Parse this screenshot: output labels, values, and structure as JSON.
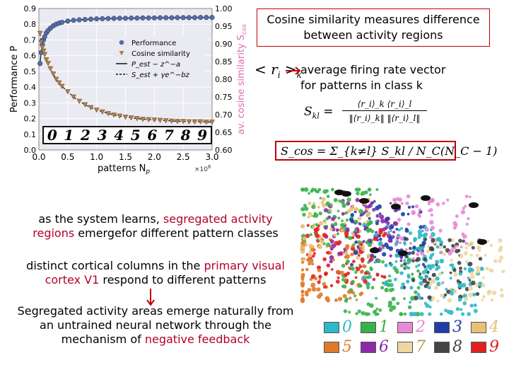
{
  "chart_data": {
    "type": "line",
    "xlabel": "patterns N",
    "xlabel_sub": "p",
    "x_multiplier": "×10",
    "x_multiplier_exp": "6",
    "ylabel_left": "Performance P",
    "ylabel_right": "av. cosine similarity S",
    "ylabel_right_sub": "cos",
    "xlim": [
      0.0,
      3.0
    ],
    "ylim_left": [
      0.0,
      0.9
    ],
    "ylim_right": [
      0.6,
      1.0
    ],
    "x_ticks": [
      "0.0",
      "0.5",
      "1.0",
      "1.5",
      "2.0",
      "2.5",
      "3.0"
    ],
    "y_ticks_left": [
      "0.0",
      "0.1",
      "0.2",
      "0.3",
      "0.4",
      "0.5",
      "0.6",
      "0.7",
      "0.8",
      "0.9"
    ],
    "y_ticks_right": [
      "0.60",
      "0.65",
      "0.70",
      "0.75",
      "0.80",
      "0.85",
      "0.90",
      "0.95",
      "1.00"
    ],
    "legend": [
      "Performance",
      "Cosine similarity",
      "P_est − z^−a",
      "S_est + γe^−bz"
    ],
    "legend_position": "upper-right",
    "series": [
      {
        "name": "Performance",
        "axis": "left",
        "marker": "circle",
        "color": "#4f6fb0",
        "x": [
          0.02,
          0.04,
          0.06,
          0.08,
          0.1,
          0.13,
          0.16,
          0.2,
          0.25,
          0.3,
          0.35,
          0.4,
          0.5,
          0.6,
          0.7,
          0.8,
          0.9,
          1.0,
          1.1,
          1.2,
          1.3,
          1.4,
          1.5,
          1.6,
          1.7,
          1.8,
          1.9,
          2.0,
          2.1,
          2.2,
          2.3,
          2.4,
          2.5,
          2.6,
          2.7,
          2.8,
          2.9,
          3.0
        ],
        "y": [
          0.55,
          0.62,
          0.67,
          0.7,
          0.72,
          0.745,
          0.76,
          0.775,
          0.79,
          0.8,
          0.807,
          0.812,
          0.82,
          0.825,
          0.828,
          0.83,
          0.832,
          0.834,
          0.835,
          0.836,
          0.837,
          0.838,
          0.838,
          0.839,
          0.839,
          0.84,
          0.84,
          0.84,
          0.841,
          0.841,
          0.841,
          0.842,
          0.842,
          0.842,
          0.842,
          0.843,
          0.843,
          0.843
        ]
      },
      {
        "name": "Cosine similarity",
        "axis": "right",
        "marker": "triangle-down",
        "color": "#b5803f",
        "x": [
          0.02,
          0.04,
          0.06,
          0.08,
          0.1,
          0.13,
          0.16,
          0.2,
          0.25,
          0.3,
          0.35,
          0.4,
          0.5,
          0.6,
          0.7,
          0.8,
          0.9,
          1.0,
          1.1,
          1.2,
          1.3,
          1.4,
          1.5,
          1.6,
          1.7,
          1.8,
          1.9,
          2.0,
          2.1,
          2.2,
          2.3,
          2.4,
          2.5,
          2.6,
          2.7,
          2.8,
          2.9,
          3.0
        ],
        "y": [
          0.93,
          0.905,
          0.89,
          0.88,
          0.87,
          0.855,
          0.845,
          0.83,
          0.815,
          0.8,
          0.79,
          0.78,
          0.765,
          0.75,
          0.738,
          0.728,
          0.72,
          0.713,
          0.708,
          0.703,
          0.699,
          0.696,
          0.693,
          0.691,
          0.689,
          0.687,
          0.686,
          0.685,
          0.684,
          0.683,
          0.682,
          0.681,
          0.681,
          0.68,
          0.68,
          0.68,
          0.679,
          0.679
        ]
      }
    ],
    "digits_row": [
      "0",
      "1",
      "2",
      "3",
      "4",
      "5",
      "6",
      "7",
      "8",
      "9"
    ]
  },
  "box_title": {
    "line1": "Cosine similarity measures difference",
    "line2": "between activity regions"
  },
  "ri_label": {
    "lt": "<",
    "r": "r",
    "i": "i",
    "gt": ">",
    "k": "k"
  },
  "firing_rate": {
    "line1": "average firing rate vector",
    "line2": "for patterns in class k"
  },
  "formula_skl": {
    "lhs": "S",
    "lhs_sub": "kl",
    "eq": "=",
    "numerator": "⟨r_i⟩_k ⟨r_i⟩_l",
    "denominator": "‖⟨r_i⟩_k‖ ‖⟨r_i⟩_l‖"
  },
  "formula_scos": {
    "text": "S_cos = Σ_{k≠l} S_kl / N_C(N_C − 1)"
  },
  "notes": {
    "n1": {
      "a": "as the system learns, ",
      "b": "segregated activity",
      "c": "regions",
      "d": " emergefor different pattern classes"
    },
    "n2": {
      "a": "distinct cortical columns in the ",
      "b": "primary visual",
      "c": "cortex V1",
      "d": " respond to different patterns"
    },
    "n3": {
      "a": "Segregated activity areas emerge naturally from an untrained neural network through the mechanism of ",
      "b": "negative feedback"
    }
  },
  "cluster_legend": {
    "items": [
      {
        "digit": "0",
        "color": "#2fb8c6"
      },
      {
        "digit": "1",
        "color": "#37b24a"
      },
      {
        "digit": "2",
        "color": "#e58ad7"
      },
      {
        "digit": "3",
        "color": "#1f3ea8"
      },
      {
        "digit": "4",
        "color": "#e9c07a"
      },
      {
        "digit": "5",
        "color": "#e07a2a"
      },
      {
        "digit": "6",
        "color": "#8c2aa8"
      },
      {
        "digit": "7",
        "color": "#ecd8a0"
      },
      {
        "digit": "8",
        "color": "#444444"
      },
      {
        "digit": "9",
        "color": "#e02020"
      }
    ]
  },
  "accent_color": "#b3002d"
}
